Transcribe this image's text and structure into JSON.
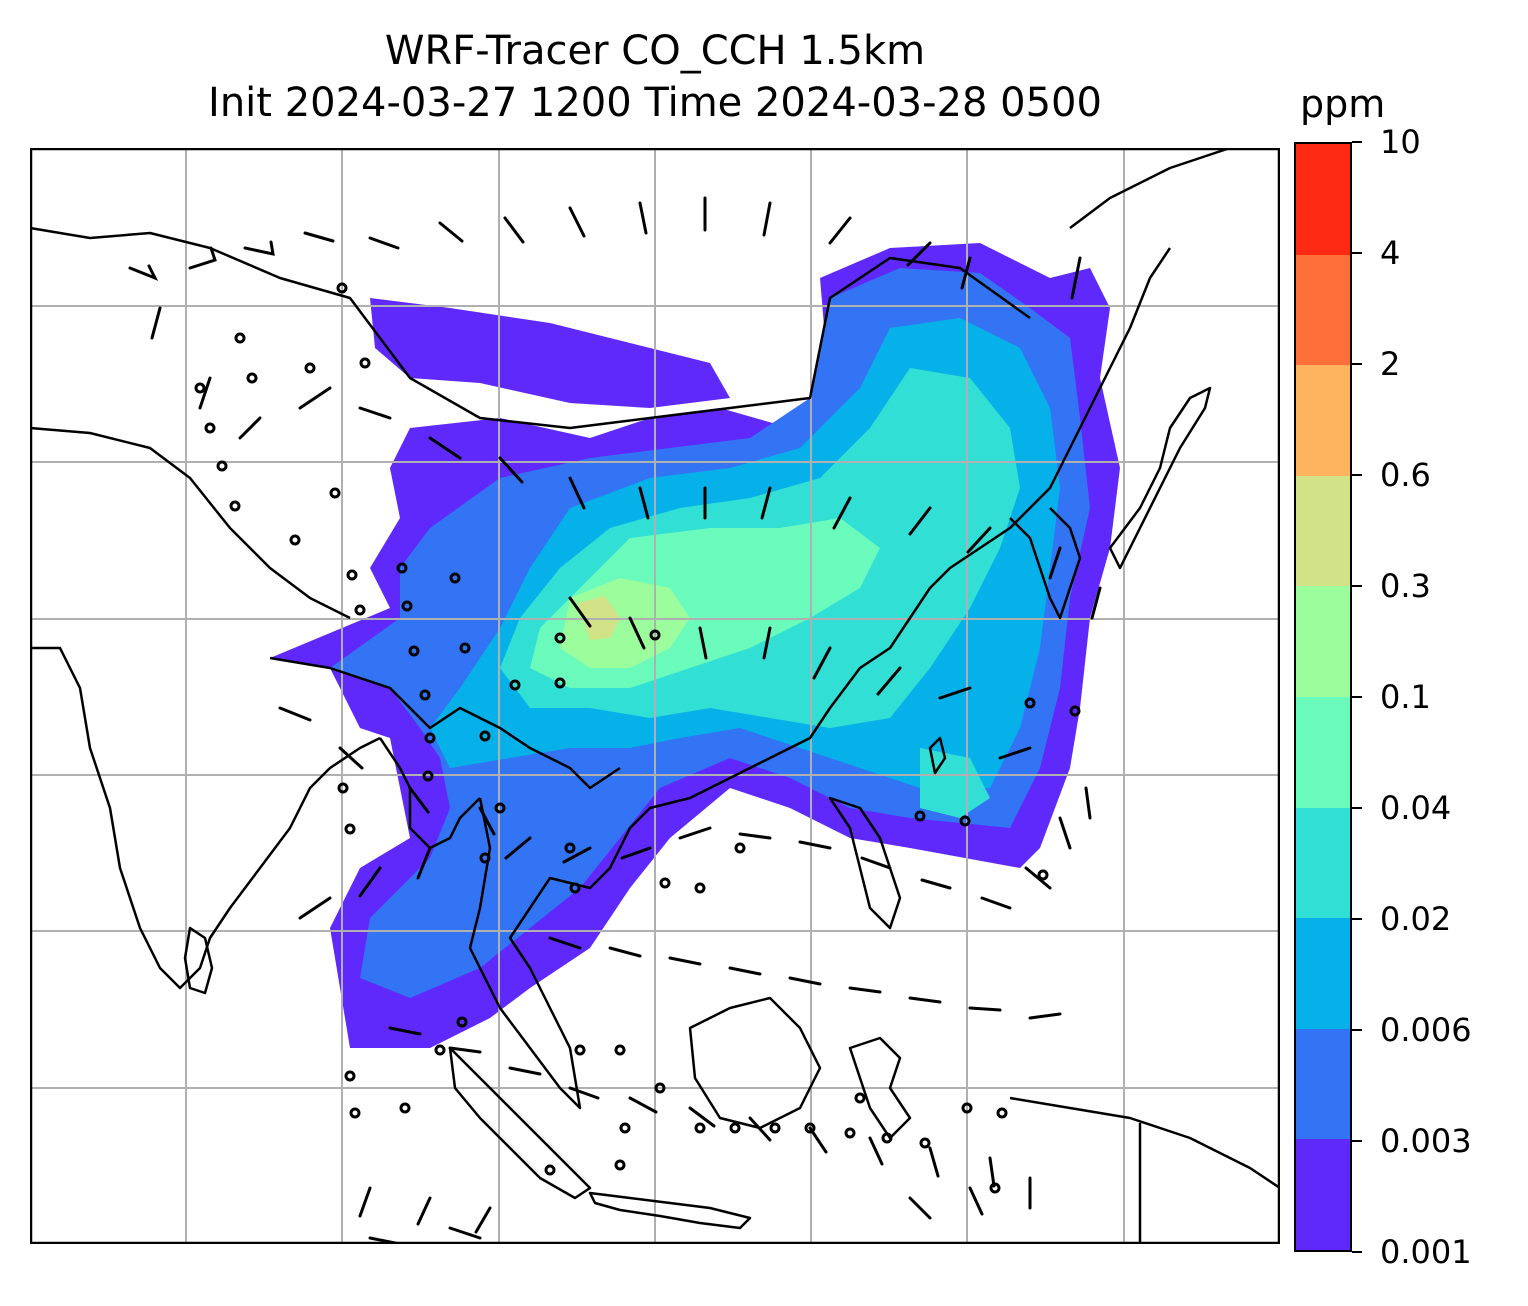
{
  "title_line1": "WRF-Tracer CO_CCH 1.5km",
  "title_line2": "Init 2024-03-27 1200 Time 2024-03-28 0500",
  "colorbar": {
    "unit": "ppm",
    "levels": [
      "0.001",
      "0.003",
      "0.006",
      "0.02",
      "0.04",
      "0.1",
      "0.3",
      "0.6",
      "2",
      "4",
      "10"
    ],
    "colors": [
      "#6029fb",
      "#3274f3",
      "#05b1e8",
      "#32dfd4",
      "#6afbbc",
      "#9cfd9c",
      "#d1e287",
      "#feb45f",
      "#ff6f3a",
      "#ff2a14"
    ]
  },
  "map": {
    "background": "#ffffff",
    "coastline_color": "#000000",
    "grid_color": "#b0b0b0",
    "wind_barb_color": "#000000"
  }
}
